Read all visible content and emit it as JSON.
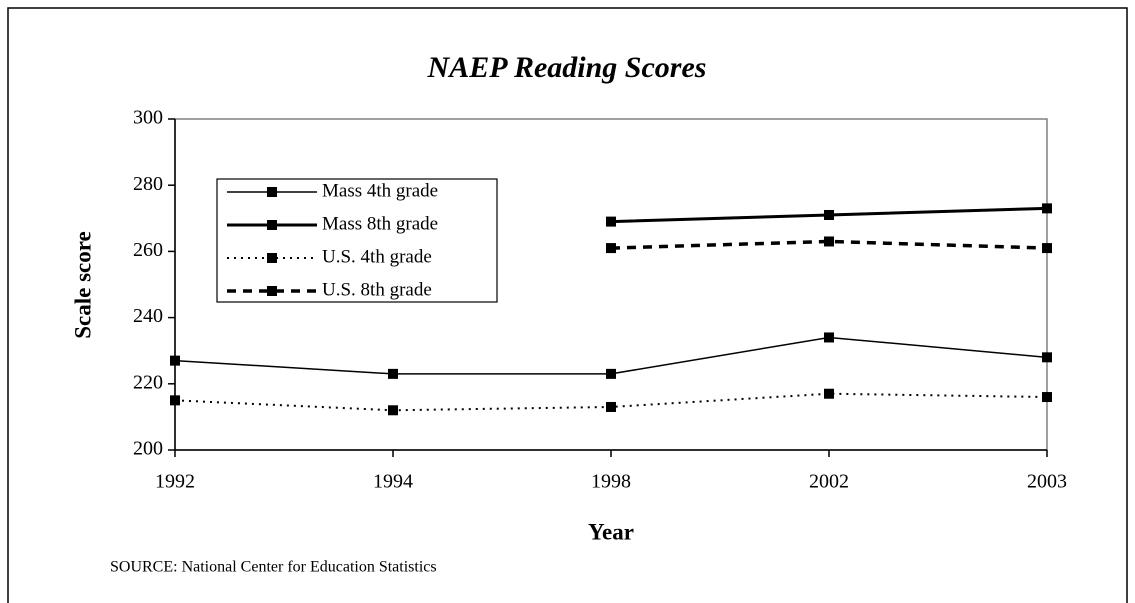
{
  "chart_data": {
    "type": "line",
    "title": "NAEP Reading Scores",
    "x_label": "Year",
    "y_label": "Scale score",
    "source": "SOURCE:  National Center for Education Statistics",
    "categories": [
      "1992",
      "1994",
      "1998",
      "2002",
      "2003"
    ],
    "series": [
      {
        "name": "Mass 4th grade",
        "color": "#000000",
        "line_style": "solid",
        "line_width": 1.5,
        "values": [
          227,
          223,
          223,
          234,
          228
        ]
      },
      {
        "name": "Mass 8th grade",
        "color": "#000000",
        "line_style": "solid",
        "line_width": 3,
        "values": [
          null,
          null,
          269,
          271,
          273
        ]
      },
      {
        "name": "U.S. 4th grade",
        "color": "#000000",
        "line_style": "dotted",
        "line_width": 2,
        "values": [
          215,
          212,
          213,
          217,
          216
        ]
      },
      {
        "name": "U.S. 8th grade",
        "color": "#000000",
        "line_style": "dashed",
        "line_width": 3.5,
        "values": [
          null,
          null,
          261,
          263,
          261
        ]
      }
    ],
    "ylim": [
      200,
      300
    ],
    "yticks": [
      200,
      220,
      240,
      260,
      280,
      300
    ],
    "grid": false,
    "legend": "upper left"
  }
}
